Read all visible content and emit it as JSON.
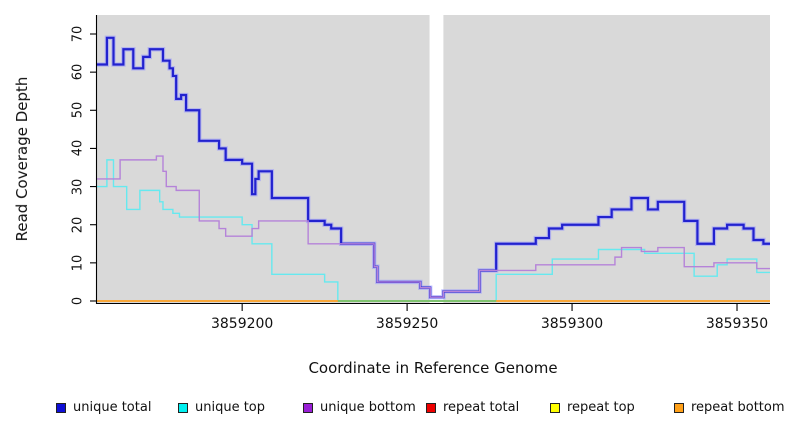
{
  "y_axis": {
    "label": "Read Coverage Depth",
    "ticks": [
      "0",
      "10",
      "20",
      "30",
      "40",
      "50",
      "60",
      "70"
    ],
    "tick_values": [
      0,
      10,
      20,
      30,
      40,
      50,
      60,
      70
    ]
  },
  "x_axis": {
    "label": "Coordinate in Reference Genome",
    "ticks": [
      "3859200",
      "3859250",
      "3859300",
      "3859350"
    ],
    "tick_values": [
      3859200,
      3859250,
      3859300,
      3859350
    ]
  },
  "legend": [
    {
      "label": "unique total",
      "color": "#0f0fd6"
    },
    {
      "label": "unique top",
      "color": "#00f0f0"
    },
    {
      "label": "unique bottom",
      "color": "#991fd6"
    },
    {
      "label": "repeat total",
      "color": "#ee0000"
    },
    {
      "label": "repeat top",
      "color": "#ffff00"
    },
    {
      "label": "repeat bottom",
      "color": "#ffa018"
    }
  ],
  "colors": {
    "plot_background": "#d9d9d9",
    "gap_band": "#ffffff",
    "zero_overlap_green": "#5fc97a",
    "axis": "#000000"
  },
  "chart_data": {
    "type": "line",
    "subtype": "step",
    "title": "",
    "xlabel": "Coordinate in Reference Genome",
    "ylabel": "Read Coverage Depth",
    "xlim": [
      3859156,
      3859360
    ],
    "ylim": [
      0,
      75
    ],
    "grid": false,
    "legend_position": "bottom",
    "gap_band_x": [
      3859256.8,
      3859261.0
    ],
    "zero_overlap_segment": {
      "x": [
        3859229,
        3859277
      ],
      "y": 0,
      "note": "cyan line at 0 overlapping orange renders green"
    },
    "series": [
      {
        "name": "unique total",
        "color": "#2222cf",
        "width": 2.2,
        "halo": "rgba(150,150,255,0.55)",
        "steps": [
          [
            3859156,
            62
          ],
          [
            3859159,
            69
          ],
          [
            3859161,
            62
          ],
          [
            3859164,
            66
          ],
          [
            3859167,
            61
          ],
          [
            3859170,
            64
          ],
          [
            3859172,
            66
          ],
          [
            3859176,
            63
          ],
          [
            3859178,
            61
          ],
          [
            3859179,
            59
          ],
          [
            3859180,
            53
          ],
          [
            3859181.5,
            54
          ],
          [
            3859183,
            50
          ],
          [
            3859187,
            42
          ],
          [
            3859193,
            40
          ],
          [
            3859195,
            37
          ],
          [
            3859200,
            36
          ],
          [
            3859203,
            28
          ],
          [
            3859204,
            32
          ],
          [
            3859205,
            34
          ],
          [
            3859209,
            27
          ],
          [
            3859220,
            21
          ],
          [
            3859225,
            20
          ],
          [
            3859227,
            19
          ],
          [
            3859230,
            15
          ],
          [
            3859240,
            9
          ],
          [
            3859241,
            5
          ],
          [
            3859254,
            3.5
          ],
          [
            3859257,
            1
          ],
          [
            3859261,
            2.5
          ],
          [
            3859272,
            8
          ],
          [
            3859277,
            15
          ],
          [
            3859289,
            16.5
          ],
          [
            3859293,
            19
          ],
          [
            3859297,
            20
          ],
          [
            3859308,
            22
          ],
          [
            3859312,
            24
          ],
          [
            3859318,
            27
          ],
          [
            3859323,
            24
          ],
          [
            3859326,
            26
          ],
          [
            3859334,
            21
          ],
          [
            3859338,
            15
          ],
          [
            3859343,
            19
          ],
          [
            3859347,
            20
          ],
          [
            3859352,
            19
          ],
          [
            3859355,
            16
          ],
          [
            3859358,
            15
          ]
        ]
      },
      {
        "name": "unique top",
        "color": "#66e9ef",
        "width": 1.4,
        "halo": null,
        "steps": [
          [
            3859156,
            30
          ],
          [
            3859159,
            37
          ],
          [
            3859161,
            30
          ],
          [
            3859165,
            24
          ],
          [
            3859169,
            29
          ],
          [
            3859175,
            26
          ],
          [
            3859176,
            24
          ],
          [
            3859179,
            23
          ],
          [
            3859181,
            22
          ],
          [
            3859200,
            20
          ],
          [
            3859203,
            15
          ],
          [
            3859209,
            7
          ],
          [
            3859225,
            5
          ],
          [
            3859229,
            0
          ],
          [
            3859277,
            7
          ],
          [
            3859294,
            11
          ],
          [
            3859308,
            13.5
          ],
          [
            3859322,
            12.5
          ],
          [
            3859337,
            6.5
          ],
          [
            3859344,
            9.5
          ],
          [
            3859347,
            11
          ],
          [
            3859356,
            7.5
          ]
        ]
      },
      {
        "name": "unique bottom",
        "color": "#b583d9",
        "width": 1.4,
        "halo": null,
        "steps": [
          [
            3859156,
            32
          ],
          [
            3859163,
            37
          ],
          [
            3859174,
            38
          ],
          [
            3859176,
            34
          ],
          [
            3859177,
            30
          ],
          [
            3859180,
            29
          ],
          [
            3859187,
            21
          ],
          [
            3859193,
            19
          ],
          [
            3859195,
            17
          ],
          [
            3859203,
            19
          ],
          [
            3859205,
            21
          ],
          [
            3859220,
            15
          ],
          [
            3859230,
            15
          ],
          [
            3859240,
            9
          ],
          [
            3859241,
            5
          ],
          [
            3859254,
            3.5
          ],
          [
            3859257,
            1
          ],
          [
            3859261,
            2.5
          ],
          [
            3859272,
            8
          ],
          [
            3859289,
            9.5
          ],
          [
            3859313,
            11.5
          ],
          [
            3859315,
            14
          ],
          [
            3859321,
            13
          ],
          [
            3859326,
            14
          ],
          [
            3859334,
            9
          ],
          [
            3859343,
            10
          ],
          [
            3859356,
            8.5
          ]
        ]
      },
      {
        "name": "repeat total",
        "color": "#e60000",
        "width": 1.2,
        "halo": null,
        "steps": [
          [
            3859156,
            0
          ]
        ]
      },
      {
        "name": "repeat top",
        "color": "#ffff00",
        "width": 1.2,
        "halo": null,
        "steps": [
          [
            3859156,
            0
          ]
        ]
      },
      {
        "name": "repeat bottom",
        "color": "#ffa126",
        "width": 1.6,
        "halo": null,
        "steps": [
          [
            3859156,
            0
          ]
        ]
      }
    ]
  }
}
